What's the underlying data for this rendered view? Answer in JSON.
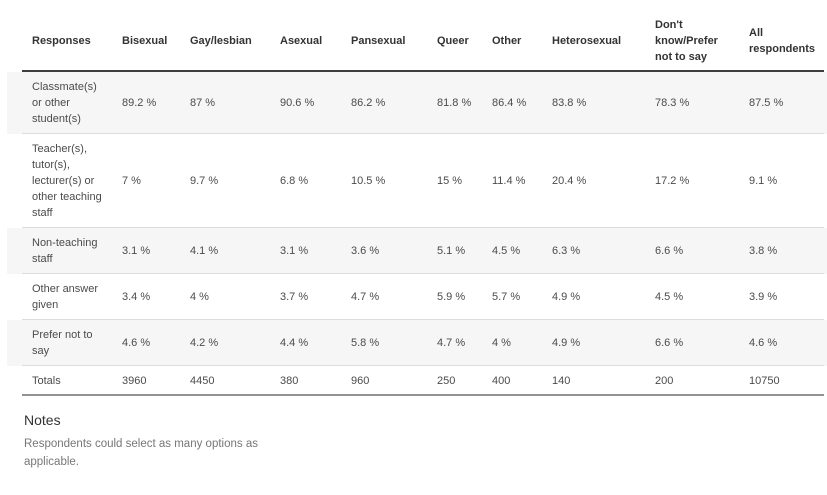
{
  "table": {
    "columns": [
      "Responses",
      "Bisexual",
      "Gay/lesbian",
      "Asexual",
      "Pansexual",
      "Queer",
      "Other",
      "Heterosexual",
      "Don't\nknow/Prefer\nnot to say",
      "All\nrespondents"
    ],
    "rows": [
      {
        "label": "Classmate(s)\nor other\nstudent(s)",
        "values": [
          "89.2 %",
          "87 %",
          "90.6 %",
          "86.2 %",
          "81.8 %",
          "86.4 %",
          "83.8 %",
          "78.3 %",
          "87.5 %"
        ]
      },
      {
        "label": "Teacher(s),\ntutor(s),\nlecturer(s) or\nother teaching\nstaff",
        "values": [
          "7 %",
          "9.7 %",
          "6.8 %",
          "10.5 %",
          "15 %",
          "11.4 %",
          "20.4 %",
          "17.2 %",
          "9.1 %"
        ]
      },
      {
        "label": "Non-teaching\nstaff",
        "values": [
          "3.1 %",
          "4.1 %",
          "3.1 %",
          "3.6 %",
          "5.1 %",
          "4.5 %",
          "6.3 %",
          "6.6 %",
          "3.8 %"
        ]
      },
      {
        "label": "Other answer\ngiven",
        "values": [
          "3.4 %",
          "4 %",
          "3.7 %",
          "4.7 %",
          "5.9 %",
          "5.7 %",
          "4.9 %",
          "4.5 %",
          "3.9 %"
        ]
      },
      {
        "label": "Prefer not to\nsay",
        "values": [
          "4.6 %",
          "4.2 %",
          "4.4 %",
          "5.8 %",
          "4.7 %",
          "4 %",
          "4.9 %",
          "6.6 %",
          "4.6 %"
        ]
      },
      {
        "label": "Totals",
        "values": [
          "3960",
          "4450",
          "380",
          "960",
          "250",
          "400",
          "140",
          "200",
          "10750"
        ]
      }
    ]
  },
  "notes": {
    "heading": "Notes",
    "body": "Respondents could select as many options as applicable."
  },
  "colors": {
    "alt_row_background": "#f6f6f6",
    "header_rule": "#3e3e3e",
    "bottom_rule": "#929292",
    "row_separator": "#dcdcdc",
    "header_text": "#333333",
    "cell_text": "#4b4b4b",
    "notes_text": "#777777"
  },
  "chart_data": {
    "type": "table",
    "title": "",
    "columns": [
      "Responses",
      "Bisexual",
      "Gay/lesbian",
      "Asexual",
      "Pansexual",
      "Queer",
      "Other",
      "Heterosexual",
      "Don't know/Prefer not to say",
      "All respondents"
    ],
    "rows": [
      [
        "Classmate(s) or other student(s)",
        "89.2 %",
        "87 %",
        "90.6 %",
        "86.2 %",
        "81.8 %",
        "86.4 %",
        "83.8 %",
        "78.3 %",
        "87.5 %"
      ],
      [
        "Teacher(s), tutor(s), lecturer(s) or other teaching staff",
        "7 %",
        "9.7 %",
        "6.8 %",
        "10.5 %",
        "15 %",
        "11.4 %",
        "20.4 %",
        "17.2 %",
        "9.1 %"
      ],
      [
        "Non-teaching staff",
        "3.1 %",
        "4.1 %",
        "3.1 %",
        "3.6 %",
        "5.1 %",
        "4.5 %",
        "6.3 %",
        "6.6 %",
        "3.8 %"
      ],
      [
        "Other answer given",
        "3.4 %",
        "4 %",
        "3.7 %",
        "4.7 %",
        "5.9 %",
        "5.7 %",
        "4.9 %",
        "4.5 %",
        "3.9 %"
      ],
      [
        "Prefer not to say",
        "4.6 %",
        "4.2 %",
        "4.4 %",
        "5.8 %",
        "4.7 %",
        "4 %",
        "4.9 %",
        "6.6 %",
        "4.6 %"
      ],
      [
        "Totals",
        "3960",
        "4450",
        "380",
        "960",
        "250",
        "400",
        "140",
        "200",
        "10750"
      ]
    ],
    "notes": "Respondents could select as many options as applicable.",
    "layout": {
      "alternating_row_shading": true,
      "grid": "horizontal-rules-only",
      "header_alignment": "left",
      "cell_alignment": "left"
    }
  }
}
